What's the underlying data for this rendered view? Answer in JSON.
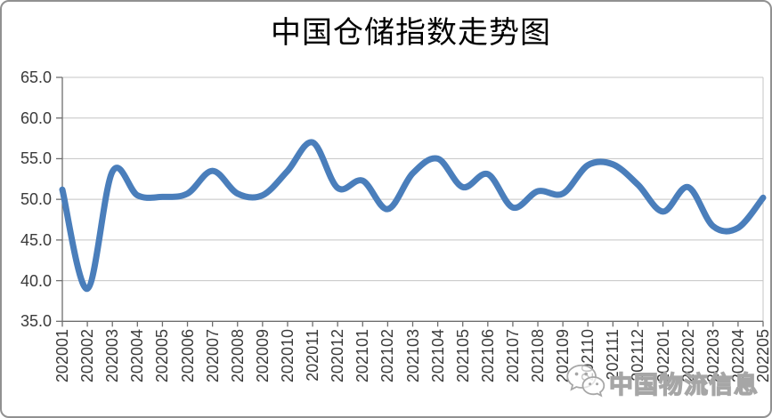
{
  "title": "中国仓储指数走势图",
  "watermark": {
    "icon": "wechat-icon",
    "text": "中国物流信息",
    "color": "#a6a6a6"
  },
  "chart_data": {
    "type": "line",
    "title": "中国仓储指数走势图",
    "xlabel": "",
    "ylabel": "",
    "categories": [
      "202001",
      "202002",
      "202003",
      "202004",
      "202005",
      "202006",
      "202007",
      "202008",
      "202009",
      "202010",
      "202011",
      "202012",
      "202101",
      "202102",
      "202103",
      "202104",
      "202105",
      "202106",
      "202107",
      "202108",
      "202109",
      "202110",
      "202111",
      "202112",
      "202201",
      "202202",
      "202203",
      "202204",
      "202205"
    ],
    "values": [
      51.2,
      39.0,
      53.4,
      50.5,
      50.3,
      50.7,
      53.5,
      50.7,
      50.5,
      53.5,
      57.0,
      51.4,
      52.3,
      48.8,
      53.2,
      55.0,
      51.5,
      53.1,
      49.0,
      51.0,
      50.7,
      54.2,
      54.3,
      51.8,
      48.5,
      51.5,
      46.7,
      46.5,
      50.2
    ],
    "ylim": [
      35.0,
      65.0
    ],
    "ytick_step": 5.0,
    "ytick_labels": [
      "65.0",
      "60.0",
      "55.0",
      "50.0",
      "45.0",
      "40.0",
      "35.0"
    ],
    "grid": true,
    "legend_position": "none",
    "smooth": true,
    "line_color": "#4a7ebb",
    "line_width": 7,
    "gridline_color": "#c4c4c4",
    "axis_color": "#6e6e6e",
    "tick_label_color": "#3a3a3a"
  }
}
